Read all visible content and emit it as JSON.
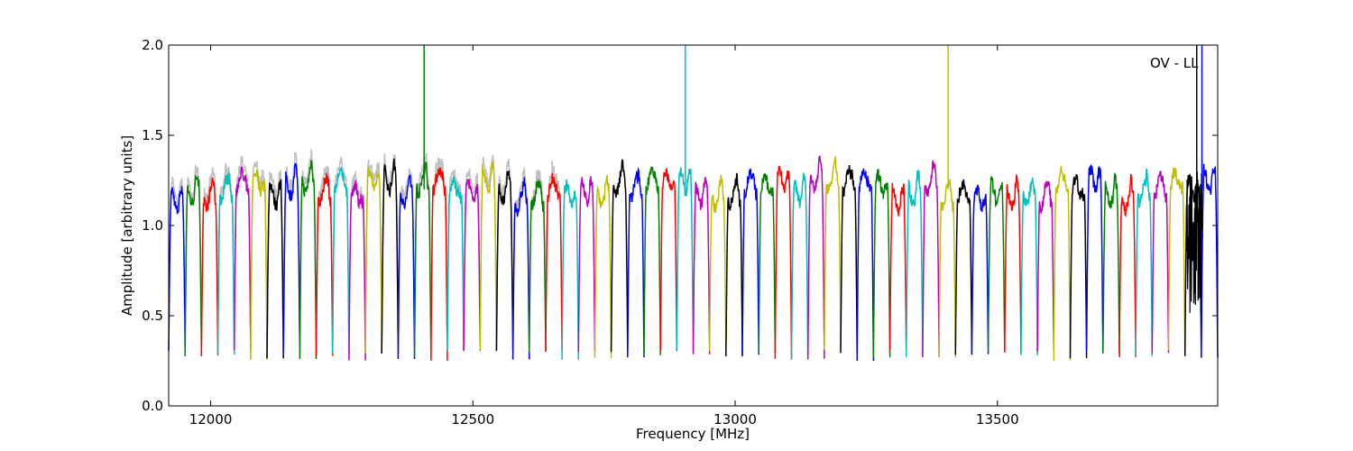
{
  "chart_data": {
    "type": "line",
    "title": "",
    "xlabel": "Frequency [MHz]",
    "ylabel": "Amplitude [arbitrary units]",
    "xlim": [
      11920,
      13920
    ],
    "ylim": [
      0.0,
      2.0
    ],
    "x_ticks": [
      12000,
      12500,
      13000,
      13500
    ],
    "y_ticks": [
      0.0,
      0.5,
      1.0,
      1.5,
      2.0
    ],
    "y_tick_labels": [
      "0.0",
      "0.5",
      "1.0",
      "1.5",
      "2.0"
    ],
    "grid": false,
    "annotation": "OV - LL",
    "band_start": 11920,
    "band_width": 31.25,
    "band_count": 64,
    "colors": [
      "#0000ff",
      "#008000",
      "#ff0000",
      "#00bfbf",
      "#bf00bf",
      "#bfbf00",
      "#000000"
    ],
    "reference_color": "#c0c0c0",
    "typical_peak": 1.2,
    "typical_dip": 0.28,
    "spikes": [
      {
        "x": 12407,
        "color": "#008000",
        "top": 2.0
      },
      {
        "x": 12905,
        "color": "#00bfbf",
        "top": 2.0
      },
      {
        "x": 13406,
        "color": "#bfbf00",
        "top": 2.0
      },
      {
        "x": 13880,
        "color": "#000000",
        "top": 2.0
      },
      {
        "x": 13890,
        "color": "#0000ff",
        "top": 2.0
      }
    ]
  }
}
